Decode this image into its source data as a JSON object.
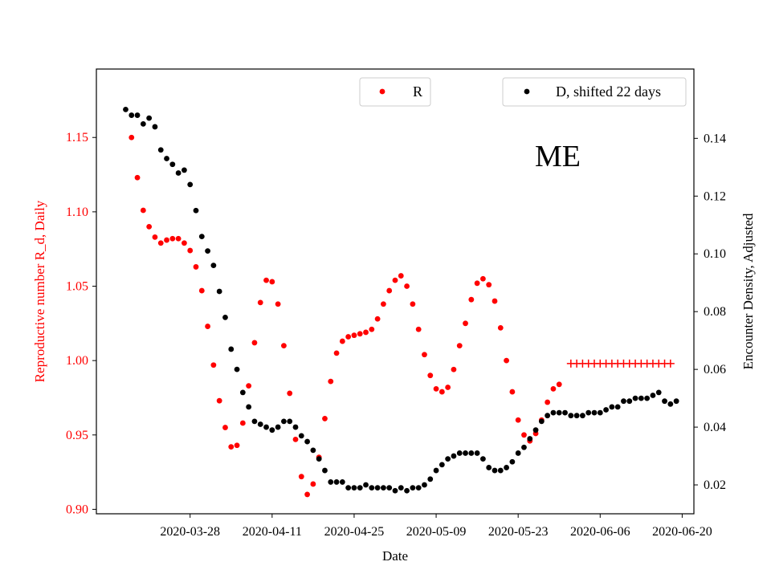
{
  "chart_data": {
    "type": "scatter",
    "title": "",
    "annotation": "ME",
    "xlabel": "Date",
    "ylabel_left": "Reproductive number R_d, Daily",
    "ylabel_right": "Encounter Density, Adjusted",
    "x_ticks": [
      "2020-03-28",
      "2020-04-11",
      "2020-04-25",
      "2020-05-09",
      "2020-05-23",
      "2020-06-06",
      "2020-06-20"
    ],
    "y_left_ticks": [
      "0.90",
      "0.95",
      "1.00",
      "1.05",
      "1.10",
      "1.15"
    ],
    "y_right_ticks": [
      "0.02",
      "0.04",
      "0.06",
      "0.08",
      "0.10",
      "0.12",
      "0.14"
    ],
    "xlim": [
      "2020-03-12",
      "2020-06-22"
    ],
    "ylim_left": [
      0.897,
      1.196
    ],
    "ylim_right": [
      0.01,
      0.164
    ],
    "legend_left": "R",
    "legend_right": "D, shifted 22 days",
    "colors": {
      "R": "#ff0000",
      "D": "#000000",
      "forecast": "#ff0000"
    },
    "series": [
      {
        "name": "R",
        "axis": "left",
        "marker": "dot",
        "start_date": "2020-03-18",
        "values": [
          1.15,
          1.123,
          1.101,
          1.09,
          1.083,
          1.079,
          1.081,
          1.082,
          1.082,
          1.079,
          1.074,
          1.063,
          1.047,
          1.023,
          0.997,
          0.973,
          0.955,
          0.942,
          0.943,
          0.958,
          0.983,
          1.012,
          1.039,
          1.054,
          1.053,
          1.038,
          1.01,
          0.978,
          0.947,
          0.922,
          0.91,
          0.917,
          0.935,
          0.961,
          0.986,
          1.005,
          1.013,
          1.016,
          1.017,
          1.018,
          1.019,
          1.021,
          1.028,
          1.038,
          1.047,
          1.054,
          1.057,
          1.05,
          1.038,
          1.021,
          1.004,
          0.99,
          0.981,
          0.979,
          0.982,
          0.994,
          1.01,
          1.025,
          1.041,
          1.052,
          1.055,
          1.051,
          1.04,
          1.022,
          1.0,
          0.979,
          0.96,
          0.95,
          0.946,
          0.951,
          0.96,
          0.972,
          0.981,
          0.984
        ]
      },
      {
        "name": "R forecast",
        "axis": "left",
        "marker": "plus",
        "start_date": "2020-06-01",
        "values": [
          0.998,
          0.998,
          0.998,
          0.998,
          0.998,
          0.998,
          0.998,
          0.998,
          0.998,
          0.998,
          0.998,
          0.998,
          0.998,
          0.998,
          0.998,
          0.998,
          0.998,
          0.998
        ]
      },
      {
        "name": "D, shifted 22 days",
        "axis": "right",
        "marker": "dot",
        "start_date": "2020-03-17",
        "values": [
          0.15,
          0.148,
          0.148,
          0.145,
          0.147,
          0.144,
          0.136,
          0.133,
          0.131,
          0.128,
          0.129,
          0.124,
          0.115,
          0.106,
          0.101,
          0.096,
          0.087,
          0.078,
          0.067,
          0.06,
          0.052,
          0.047,
          0.042,
          0.041,
          0.04,
          0.039,
          0.04,
          0.042,
          0.042,
          0.04,
          0.037,
          0.035,
          0.032,
          0.029,
          0.025,
          0.021,
          0.021,
          0.021,
          0.019,
          0.019,
          0.019,
          0.02,
          0.019,
          0.019,
          0.019,
          0.019,
          0.018,
          0.019,
          0.018,
          0.019,
          0.019,
          0.02,
          0.022,
          0.025,
          0.027,
          0.029,
          0.03,
          0.031,
          0.031,
          0.031,
          0.031,
          0.029,
          0.026,
          0.025,
          0.025,
          0.026,
          0.028,
          0.031,
          0.033,
          0.036,
          0.039,
          0.042,
          0.044,
          0.045,
          0.045,
          0.045,
          0.044,
          0.044,
          0.044,
          0.045,
          0.045,
          0.045,
          0.046,
          0.047,
          0.047,
          0.049,
          0.049,
          0.05,
          0.05,
          0.05,
          0.051,
          0.052,
          0.049,
          0.048,
          0.049
        ]
      }
    ]
  }
}
